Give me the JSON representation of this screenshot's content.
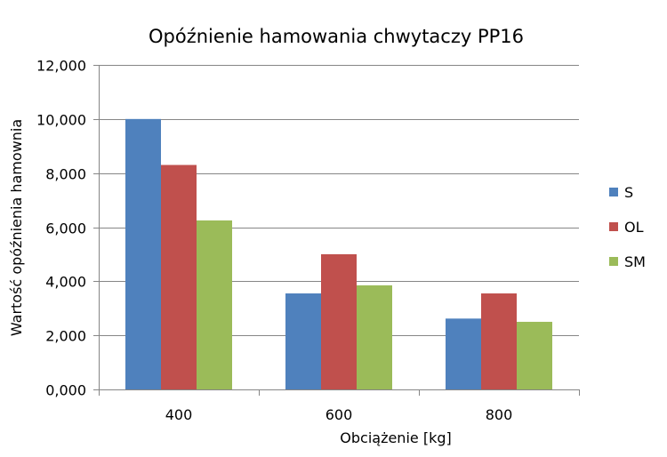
{
  "chart_data": {
    "type": "bar",
    "title": "Opóźnienie hamowania chwytaczy PP16",
    "xlabel": "Obciążenie [kg]",
    "ylabel": "Wartość opóźnienia hamownia",
    "categories": [
      "400",
      "600",
      "800"
    ],
    "series": [
      {
        "name": "S",
        "color": "#4F81BD",
        "values": [
          10.0,
          3.55,
          2.62
        ]
      },
      {
        "name": "OL",
        "color": "#C0504D",
        "values": [
          8.3,
          5.0,
          3.55
        ]
      },
      {
        "name": "SM",
        "color": "#9BBB59",
        "values": [
          6.25,
          3.85,
          2.5
        ]
      }
    ],
    "ylim": [
      0,
      12
    ],
    "yticks": [
      0,
      2,
      4,
      6,
      8,
      10,
      12
    ],
    "ytick_labels": [
      "0,000",
      "2,000",
      "4,000",
      "6,000",
      "8,000",
      "10,000",
      "12,000"
    ],
    "grid": true,
    "legend_position": "right"
  }
}
